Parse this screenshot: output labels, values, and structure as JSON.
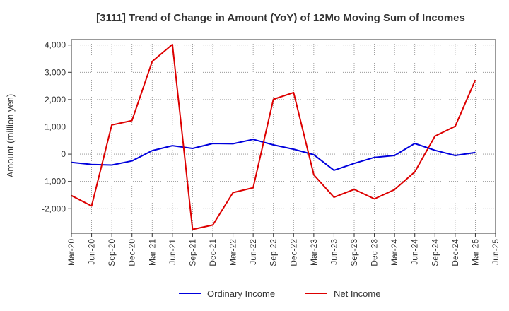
{
  "chart_data": {
    "type": "line",
    "title": "[3111]  Trend of Change in Amount (YoY) of 12Mo Moving Sum of Incomes",
    "ylabel": "Amount (million yen)",
    "xlabel": "",
    "ylim": [
      -2900,
      4200
    ],
    "yticks": [
      -2000,
      -1000,
      0,
      1000,
      2000,
      3000,
      4000
    ],
    "ytick_labels": [
      "-2,000",
      "-1,000",
      "0",
      "1,000",
      "2,000",
      "3,000",
      "4,000"
    ],
    "x_labels": [
      "Mar-20",
      "Jun-20",
      "Sep-20",
      "Dec-20",
      "Mar-21",
      "Jun-21",
      "Sep-21",
      "Dec-21",
      "Mar-22",
      "Jun-22",
      "Sep-22",
      "Dec-22",
      "Mar-23",
      "Jun-23",
      "Sep-23",
      "Dec-23",
      "Mar-24",
      "Jun-24",
      "Sep-24",
      "Dec-24",
      "Mar-25",
      "Jun-25"
    ],
    "grid": true,
    "legend_position": "bottom",
    "series": [
      {
        "name": "Ordinary Income",
        "color": "#0000dd",
        "values": [
          -300,
          -380,
          -400,
          -250,
          130,
          310,
          210,
          390,
          380,
          540,
          340,
          180,
          -20,
          -590,
          -340,
          -120,
          -50,
          390,
          140,
          -50,
          60,
          null
        ]
      },
      {
        "name": "Net Income",
        "color": "#dd0000",
        "values": [
          -1520,
          -1900,
          1070,
          1230,
          3400,
          4020,
          -2760,
          -2600,
          -1410,
          -1230,
          2010,
          2260,
          -760,
          -1580,
          -1290,
          -1640,
          -1300,
          -650,
          660,
          1020,
          2720,
          null
        ]
      }
    ]
  }
}
